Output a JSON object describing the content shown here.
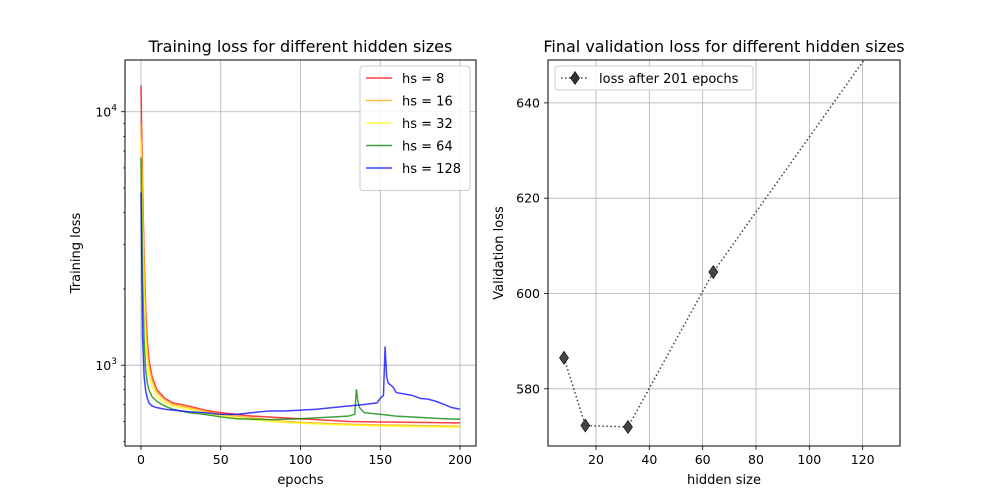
{
  "chart_data": [
    {
      "type": "line",
      "title": "Training loss for different hidden sizes",
      "xlabel": "epochs",
      "ylabel": "Training loss",
      "yscale": "log",
      "xlim": [
        -10,
        210
      ],
      "ylim": [
        480,
        16000
      ],
      "xticks": [
        0,
        50,
        100,
        150,
        200
      ],
      "yticks": [
        {
          "value": 1000,
          "base": "10",
          "exp": "3"
        },
        {
          "value": 10000,
          "base": "10",
          "exp": "4"
        }
      ],
      "grid": true,
      "legend": "top-right",
      "series": [
        {
          "name": "hs = 8",
          "color": "#ff0000",
          "points": [
            [
              0,
              12700
            ],
            [
              1,
              5200
            ],
            [
              2,
              2700
            ],
            [
              3,
              1650
            ],
            [
              4,
              1250
            ],
            [
              5,
              1050
            ],
            [
              7,
              900
            ],
            [
              10,
              800
            ],
            [
              15,
              740
            ],
            [
              20,
              710
            ],
            [
              30,
              690
            ],
            [
              40,
              665
            ],
            [
              50,
              650
            ],
            [
              60,
              640
            ],
            [
              70,
              630
            ],
            [
              80,
              625
            ],
            [
              90,
              620
            ],
            [
              100,
              615
            ],
            [
              110,
              610
            ],
            [
              120,
              605
            ],
            [
              130,
              600
            ],
            [
              140,
              598
            ],
            [
              150,
              597
            ],
            [
              160,
              596
            ],
            [
              170,
              595
            ],
            [
              180,
              594
            ],
            [
              190,
              593
            ],
            [
              200,
              592
            ]
          ]
        },
        {
          "name": "hs = 16",
          "color": "#ffa500",
          "points": [
            [
              0,
              9000
            ],
            [
              1,
              4500
            ],
            [
              2,
              2400
            ],
            [
              3,
              1500
            ],
            [
              4,
              1150
            ],
            [
              5,
              1000
            ],
            [
              7,
              870
            ],
            [
              10,
              780
            ],
            [
              15,
              730
            ],
            [
              20,
              700
            ],
            [
              30,
              680
            ],
            [
              40,
              660
            ],
            [
              50,
              640
            ],
            [
              60,
              630
            ],
            [
              70,
              620
            ],
            [
              80,
              610
            ],
            [
              90,
              600
            ],
            [
              100,
              595
            ],
            [
              120,
              588
            ],
            [
              140,
              583
            ],
            [
              160,
              580
            ],
            [
              180,
              577
            ],
            [
              200,
              575
            ]
          ]
        },
        {
          "name": "hs = 32",
          "color": "#ffff00",
          "points": [
            [
              0,
              7800
            ],
            [
              1,
              3800
            ],
            [
              2,
              2000
            ],
            [
              3,
              1300
            ],
            [
              4,
              1050
            ],
            [
              5,
              920
            ],
            [
              7,
              820
            ],
            [
              10,
              750
            ],
            [
              15,
              710
            ],
            [
              20,
              690
            ],
            [
              30,
              670
            ],
            [
              40,
              650
            ],
            [
              50,
              630
            ],
            [
              60,
              620
            ],
            [
              70,
              610
            ],
            [
              80,
              600
            ],
            [
              90,
              595
            ],
            [
              100,
              590
            ],
            [
              120,
              583
            ],
            [
              140,
              578
            ],
            [
              160,
              574
            ],
            [
              180,
              572
            ],
            [
              200,
              570
            ]
          ]
        },
        {
          "name": "hs = 64",
          "color": "#008000",
          "points": [
            [
              0,
              6600
            ],
            [
              1,
              2200
            ],
            [
              2,
              1250
            ],
            [
              3,
              950
            ],
            [
              4,
              850
            ],
            [
              5,
              800
            ],
            [
              7,
              750
            ],
            [
              10,
              720
            ],
            [
              15,
              690
            ],
            [
              20,
              670
            ],
            [
              25,
              660
            ],
            [
              30,
              650
            ],
            [
              40,
              640
            ],
            [
              50,
              625
            ],
            [
              60,
              615
            ],
            [
              70,
              612
            ],
            [
              80,
              610
            ],
            [
              90,
              612
            ],
            [
              100,
              615
            ],
            [
              110,
              620
            ],
            [
              120,
              625
            ],
            [
              130,
              630
            ],
            [
              134,
              640
            ],
            [
              135,
              800
            ],
            [
              136,
              720
            ],
            [
              137,
              680
            ],
            [
              140,
              650
            ],
            [
              150,
              640
            ],
            [
              160,
              630
            ],
            [
              170,
              625
            ],
            [
              180,
              620
            ],
            [
              190,
              615
            ],
            [
              200,
              612
            ]
          ]
        },
        {
          "name": "hs = 128",
          "color": "#0000ff",
          "points": [
            [
              0,
              4800
            ],
            [
              1,
              1300
            ],
            [
              2,
              900
            ],
            [
              3,
              790
            ],
            [
              4,
              740
            ],
            [
              5,
              710
            ],
            [
              7,
              690
            ],
            [
              10,
              680
            ],
            [
              15,
              670
            ],
            [
              20,
              665
            ],
            [
              25,
              660
            ],
            [
              30,
              655
            ],
            [
              40,
              650
            ],
            [
              50,
              640
            ],
            [
              60,
              640
            ],
            [
              70,
              650
            ],
            [
              80,
              660
            ],
            [
              90,
              660
            ],
            [
              100,
              665
            ],
            [
              110,
              670
            ],
            [
              120,
              680
            ],
            [
              130,
              690
            ],
            [
              140,
              700
            ],
            [
              148,
              710
            ],
            [
              150,
              740
            ],
            [
              152,
              760
            ],
            [
              153,
              1180
            ],
            [
              154,
              900
            ],
            [
              155,
              850
            ],
            [
              158,
              820
            ],
            [
              160,
              780
            ],
            [
              170,
              760
            ],
            [
              175,
              740
            ],
            [
              180,
              735
            ],
            [
              185,
              720
            ],
            [
              190,
              700
            ],
            [
              195,
              680
            ],
            [
              200,
              670
            ]
          ]
        }
      ]
    },
    {
      "type": "line",
      "title": "Final validation loss for different hidden sizes",
      "xlabel": "hidden size",
      "ylabel": "Validation loss",
      "xlim": [
        2,
        134
      ],
      "ylim": [
        568,
        649
      ],
      "xticks": [
        20,
        40,
        60,
        80,
        100,
        120
      ],
      "yticks": [
        580,
        600,
        620,
        640
      ],
      "grid": true,
      "legend": "top-left",
      "series": [
        {
          "name": "loss after 201 epochs",
          "color": "#000000",
          "linestyle": "dotted",
          "marker": "diamond",
          "x": [
            8,
            16,
            32,
            64,
            128
          ],
          "y": [
            586.5,
            572.3,
            572.0,
            604.5,
            654.9
          ]
        }
      ]
    }
  ]
}
